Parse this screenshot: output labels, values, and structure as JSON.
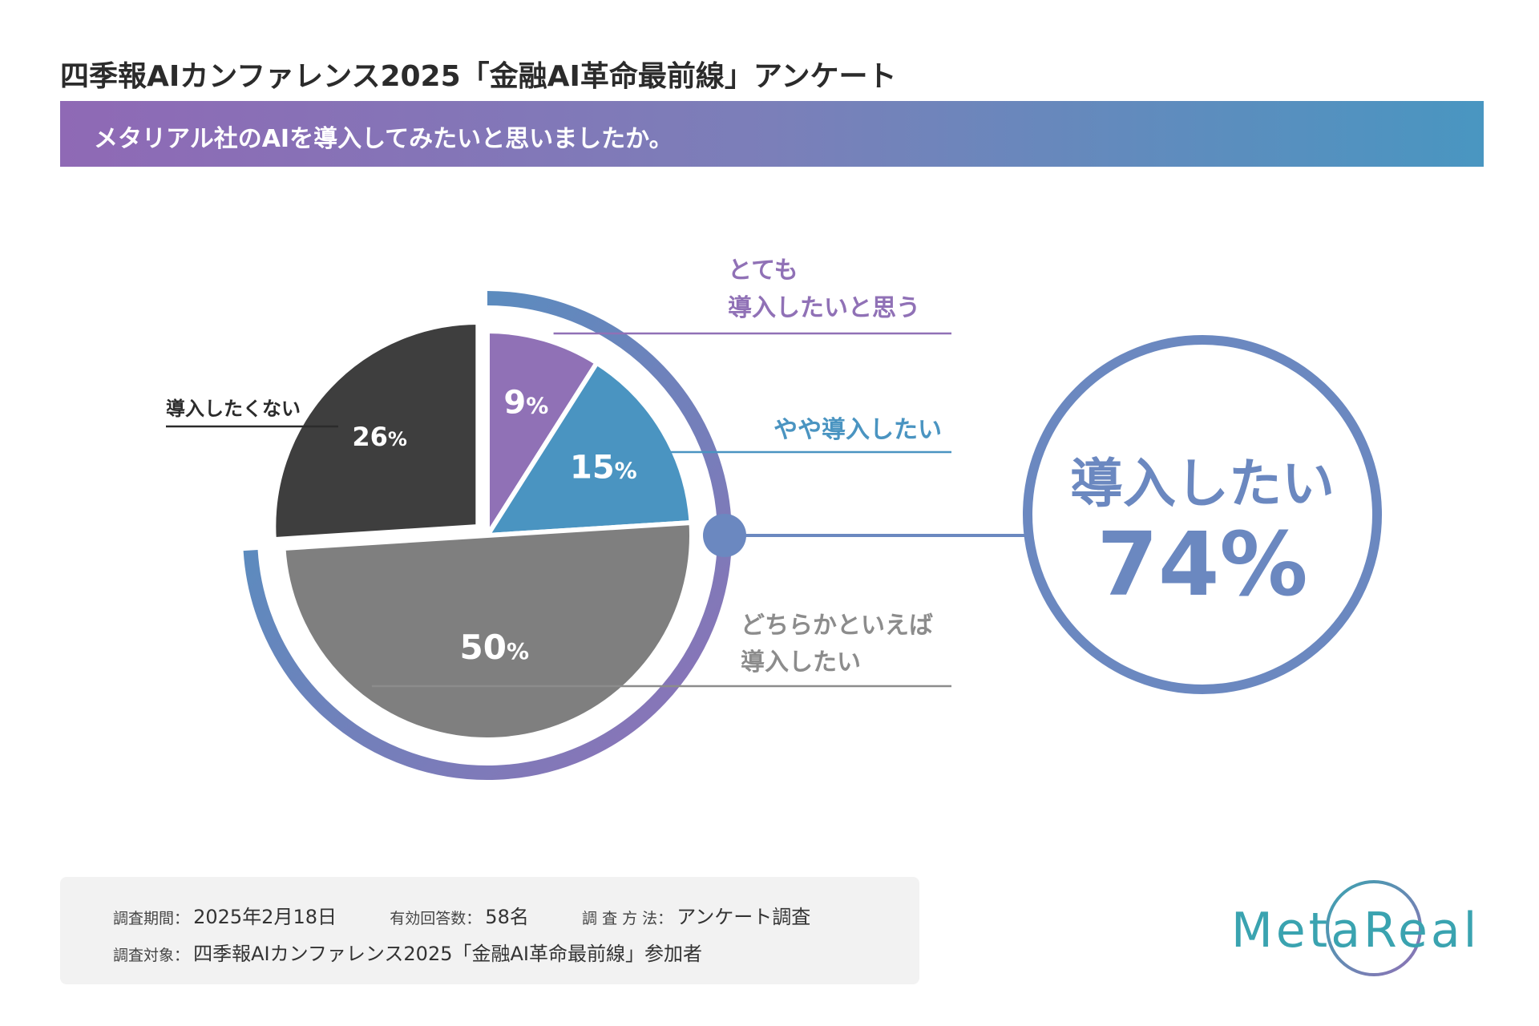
{
  "header": {
    "title": "四季報AIカンファレンス2025「金融AI革命最前線」アンケート",
    "question": "メタリアル社のAIを導入してみたいと思いましたか。"
  },
  "colors": {
    "purple": "#9071b6",
    "blue": "#4a94c1",
    "dark": "#3e3e3e",
    "gray": "#7f7f7f",
    "summary": "#6b88c0",
    "gray_text": "#8c8c8c"
  },
  "chart_data": {
    "type": "pie",
    "title": "メタリアル社のAIを導入してみたいと思いましたか。",
    "unit": "%",
    "slices": [
      {
        "label_lines": [
          "とても",
          "導入したいと思う"
        ],
        "value": 9,
        "value_label": "9",
        "color": "#9071b6"
      },
      {
        "label_lines": [
          "やや導入したい"
        ],
        "value": 15,
        "value_label": "15",
        "color": "#4a94c1"
      },
      {
        "label_lines": [
          "どちらかといえば",
          "導入したい"
        ],
        "value": 50,
        "value_label": "50",
        "color": "#7f7f7f"
      },
      {
        "label_lines": [
          "導入したくない"
        ],
        "value": 26,
        "value_label": "26",
        "color": "#3e3e3e"
      }
    ],
    "summary": {
      "label": "導入したい",
      "value": 74,
      "value_label": "74%"
    }
  },
  "footer": {
    "period_label": "調査期間：",
    "period_value": "2025年2月18日",
    "responses_label": "有効回答数：",
    "responses_value": "58名",
    "method_label": "調 査 方 法：",
    "method_value": "アンケート調査",
    "target_label": "調査対象：",
    "target_value": "四季報AIカンファレンス2025「金融AI革命最前線」参加者"
  },
  "logo": {
    "text": "MetaReal"
  }
}
